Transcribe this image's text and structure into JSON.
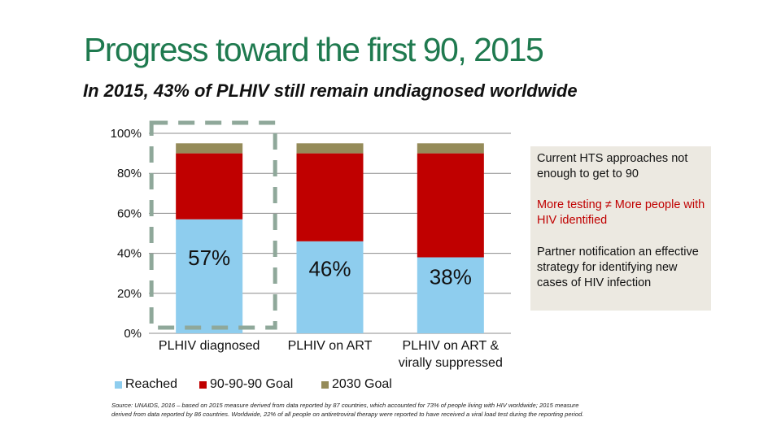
{
  "slide": {
    "title": "Progress toward the first 90, 2015",
    "subtitle": "In 2015, 43% of PLHIV still remain undiagnosed worldwide",
    "source": "Source: UNAIDS, 2016 – based on 2015 measure derived from data reported by 87 countries, which accounted for 73% of people living with HIV worldwide; 2015 measure derived from data reported by 86 countries. Worldwide, 22% of all people on antiretroviral therapy were reported to have received a viral load test during the reporting period."
  },
  "sidebar": {
    "notes": [
      {
        "text": "Current HTS approaches not enough to get to 90"
      },
      {
        "text": "More testing ≠ More people with HIV identified"
      },
      {
        "text": "Partner notification an effective strategy for identifying new cases of HIV infection"
      }
    ]
  },
  "colors": {
    "reached": "#8ecdee",
    "goal_90": "#c00000",
    "goal_2030": "#958b59",
    "title": "#1f7a4f",
    "highlight_box": "#8fa89a"
  },
  "chart_data": {
    "type": "bar",
    "stacked": true,
    "categories": [
      "PLHIV diagnosed",
      "PLHIV on ART",
      "PLHIV on ART & virally suppressed"
    ],
    "series": [
      {
        "name": "Reached",
        "values": [
          57,
          46,
          38
        ]
      },
      {
        "name": "90-90-90 Goal",
        "values": [
          33,
          44,
          52
        ]
      },
      {
        "name": "2030 Goal",
        "values": [
          5,
          5,
          5
        ]
      }
    ],
    "data_labels": [
      "57%",
      "46%",
      "38%"
    ],
    "y_ticks": [
      "0%",
      "20%",
      "40%",
      "60%",
      "80%",
      "100%"
    ],
    "ylim": [
      0,
      100
    ],
    "grid": true,
    "legend": "bottom-left",
    "highlight": "PLHIV diagnosed"
  }
}
